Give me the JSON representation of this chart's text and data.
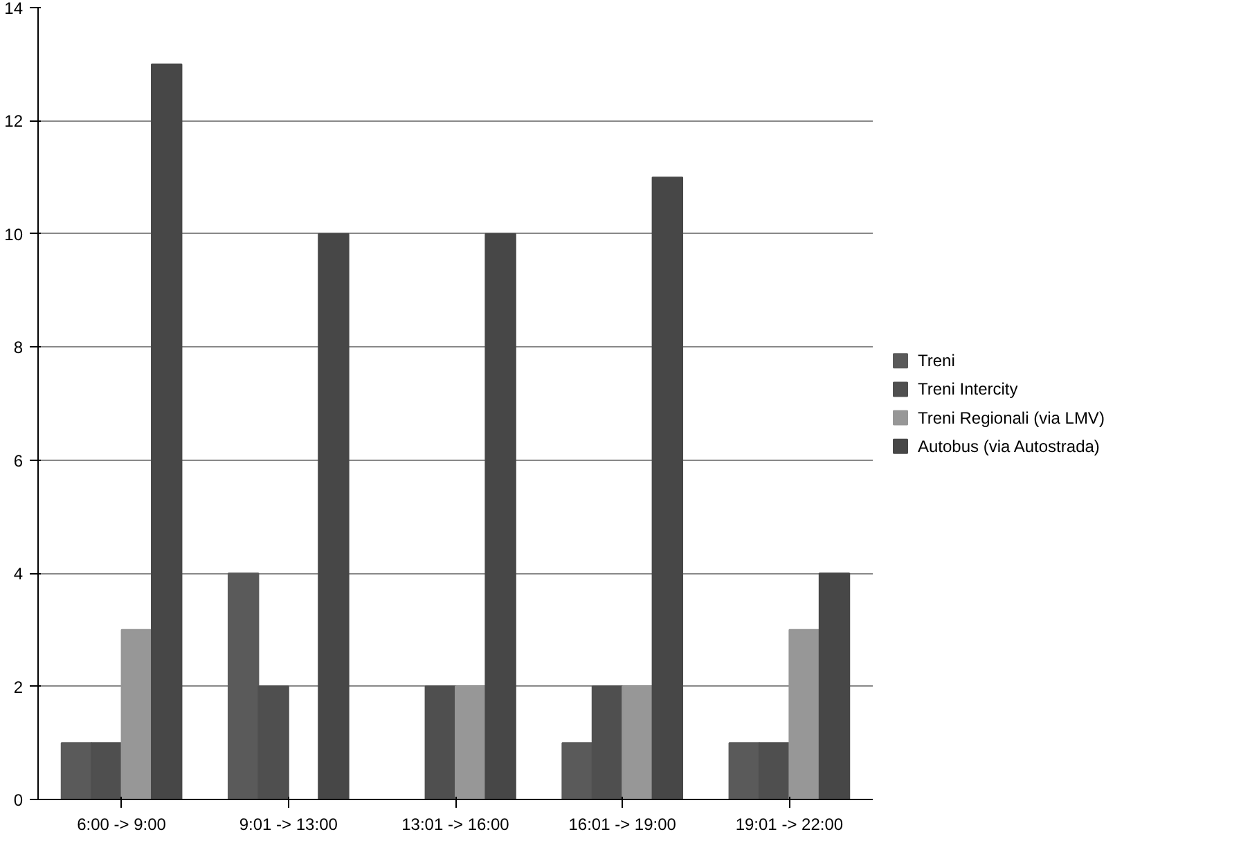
{
  "chart_data": {
    "type": "bar",
    "categories": [
      "6:00 -> 9:00",
      "9:01 -> 13:00",
      "13:01 -> 16:00",
      "16:01 -> 19:00",
      "19:01 -> 22:00"
    ],
    "series": [
      {
        "name": "Treni",
        "color": "#5a5a5a",
        "values": [
          1,
          4,
          0,
          1,
          1
        ]
      },
      {
        "name": "Treni Intercity",
        "color": "#4f4f4f",
        "values": [
          1,
          2,
          2,
          2,
          1
        ]
      },
      {
        "name": "Treni Regionali (via LMV)",
        "color": "#979797",
        "values": [
          3,
          0,
          2,
          2,
          3
        ]
      },
      {
        "name": "Autobus (via Autostrada)",
        "color": "#474747",
        "values": [
          13,
          10,
          10,
          11,
          4
        ]
      }
    ],
    "ylim": [
      0,
      14
    ],
    "yticks": [
      0,
      2,
      4,
      6,
      8,
      10,
      12,
      14
    ],
    "grid": "y",
    "legend": "right"
  }
}
